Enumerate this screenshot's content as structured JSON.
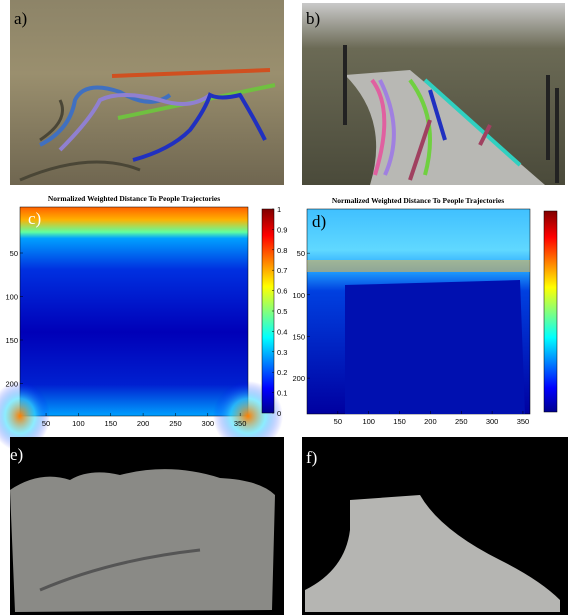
{
  "panels": [
    {
      "label": "a)"
    },
    {
      "label": "b)"
    },
    {
      "label": "c)",
      "title": "Normalized Weighted Distance To People Trajectories",
      "xticks": [
        50,
        100,
        150,
        200,
        250,
        300,
        350
      ],
      "yticks": [
        50,
        100,
        150,
        200
      ],
      "colorbar_ticks": [
        0,
        0.1,
        0.2,
        0.3,
        0.4,
        0.5,
        0.6,
        0.7,
        0.8,
        0.9,
        1
      ]
    },
    {
      "label": "d)",
      "title": "Normalized Weighted Distance To People Trajectories",
      "xticks": [
        50,
        100,
        150,
        200,
        250,
        300,
        350
      ],
      "yticks": [
        50,
        100,
        150,
        200
      ]
    },
    {
      "label": "e)"
    },
    {
      "label": "f)"
    }
  ]
}
